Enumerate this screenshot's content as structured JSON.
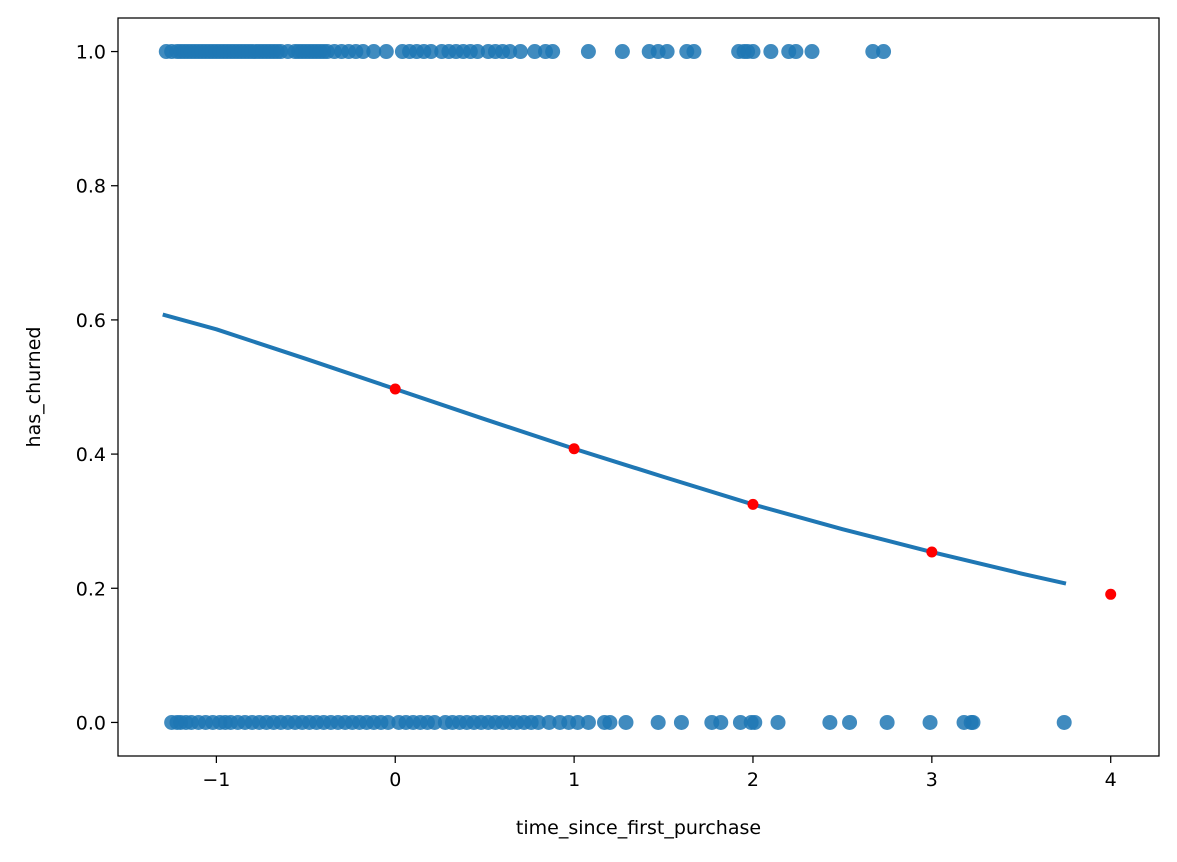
{
  "chart_data": {
    "type": "scatter",
    "title": "",
    "xlabel": "time_since_first_purchase",
    "ylabel": "has_churned",
    "xlim": [
      -1.55,
      4.27
    ],
    "ylim": [
      -0.05,
      1.05
    ],
    "xticks": [
      -1,
      0,
      1,
      2,
      3,
      4
    ],
    "xtick_labels": [
      "−1",
      "0",
      "1",
      "2",
      "3",
      "4"
    ],
    "yticks": [
      0.0,
      0.2,
      0.4,
      0.6,
      0.8,
      1.0
    ],
    "ytick_labels": [
      "0.0",
      "0.2",
      "0.4",
      "0.6",
      "0.8",
      "1.0"
    ],
    "grid": false,
    "colors": {
      "points": "#1f77b4",
      "fit_line": "#1f77b4",
      "predictions": "#ff0000"
    },
    "series": [
      {
        "kind": "scatter",
        "color": "#1f77b4",
        "y": 1,
        "x": [
          -1.28,
          -1.25,
          -1.22,
          -1.2,
          -1.18,
          -1.16,
          -1.14,
          -1.12,
          -1.1,
          -1.08,
          -1.06,
          -1.04,
          -1.02,
          -1.0,
          -0.98,
          -0.96,
          -0.94,
          -0.92,
          -0.9,
          -0.88,
          -0.86,
          -0.84,
          -0.82,
          -0.8,
          -0.78,
          -0.76,
          -0.74,
          -0.72,
          -0.7,
          -0.68,
          -0.66,
          -0.64,
          -0.6,
          -0.56,
          -0.54,
          -0.52,
          -0.5,
          -0.48,
          -0.46,
          -0.44,
          -0.42,
          -0.4,
          -0.38,
          -0.34,
          -0.3,
          -0.26,
          -0.22,
          -0.18,
          -0.12,
          -0.05,
          0.04,
          0.08,
          0.12,
          0.16,
          0.2,
          0.26,
          0.3,
          0.34,
          0.38,
          0.42,
          0.46,
          0.52,
          0.56,
          0.6,
          0.64,
          0.7,
          0.78,
          0.84,
          0.88,
          1.08,
          1.27,
          1.42,
          1.47,
          1.52,
          1.63,
          1.67,
          1.92,
          1.95,
          1.97,
          2.0,
          2.1,
          2.2,
          2.24,
          2.33,
          2.67,
          2.73
        ]
      },
      {
        "kind": "scatter",
        "color": "#1f77b4",
        "y": 0,
        "x": [
          -1.25,
          -1.22,
          -1.2,
          -1.17,
          -1.14,
          -1.1,
          -1.06,
          -1.02,
          -0.98,
          -0.95,
          -0.92,
          -0.88,
          -0.84,
          -0.8,
          -0.76,
          -0.72,
          -0.68,
          -0.64,
          -0.6,
          -0.56,
          -0.52,
          -0.48,
          -0.44,
          -0.4,
          -0.36,
          -0.32,
          -0.28,
          -0.24,
          -0.2,
          -0.16,
          -0.12,
          -0.08,
          -0.04,
          0.02,
          0.06,
          0.1,
          0.14,
          0.18,
          0.22,
          0.28,
          0.32,
          0.36,
          0.4,
          0.44,
          0.48,
          0.52,
          0.56,
          0.6,
          0.64,
          0.68,
          0.72,
          0.76,
          0.8,
          0.86,
          0.92,
          0.97,
          1.02,
          1.08,
          1.17,
          1.2,
          1.29,
          1.47,
          1.6,
          1.77,
          1.82,
          1.93,
          1.99,
          2.01,
          2.14,
          2.43,
          2.54,
          2.75,
          2.99,
          3.18,
          3.22,
          3.23,
          3.74
        ]
      },
      {
        "kind": "line",
        "color": "#1f77b4",
        "x": [
          -1.3,
          -1.0,
          -0.5,
          0.0,
          0.5,
          1.0,
          1.5,
          2.0,
          2.5,
          3.0,
          3.5,
          3.75
        ],
        "y": [
          0.608,
          0.586,
          0.542,
          0.497,
          0.452,
          0.408,
          0.366,
          0.325,
          0.288,
          0.254,
          0.222,
          0.207
        ]
      },
      {
        "kind": "scatter",
        "color": "#ff0000",
        "x": [
          0,
          1,
          2,
          3,
          4
        ],
        "y": [
          0.497,
          0.408,
          0.325,
          0.254,
          0.191
        ]
      }
    ]
  }
}
